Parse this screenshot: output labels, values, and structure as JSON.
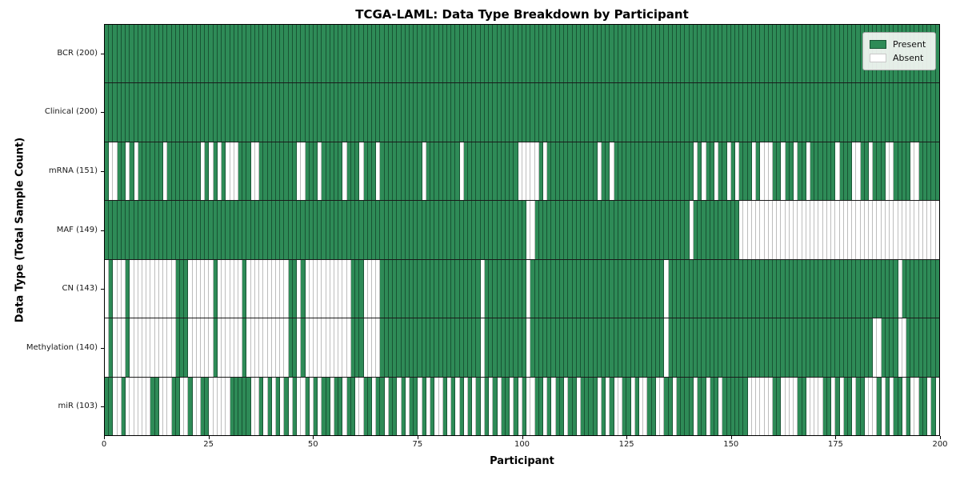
{
  "chart_data": {
    "type": "heatmap",
    "title": "TCGA-LAML: Data Type Breakdown by Participant",
    "xlabel": "Participant",
    "ylabel": "Data Type (Total Sample Count)",
    "n_participants": 200,
    "x_ticks": [
      0,
      25,
      50,
      75,
      100,
      125,
      150,
      175,
      200
    ],
    "colors": {
      "present": "#2e8b57",
      "absent": "#ffffff"
    },
    "legend": [
      {
        "label": "Present",
        "key": "present"
      },
      {
        "label": "Absent",
        "key": "absent"
      }
    ],
    "rows": [
      {
        "label": "BCR (200)",
        "present_count": 200,
        "absent_columns": []
      },
      {
        "label": "Clinical (200)",
        "present_count": 200,
        "absent_columns": []
      },
      {
        "label": "mRNA (151)",
        "present_count": 151,
        "absent_columns": [
          1,
          2,
          5,
          7,
          14,
          23,
          25,
          27,
          29,
          30,
          31,
          35,
          36,
          46,
          47,
          51,
          57,
          61,
          65,
          76,
          85,
          99,
          100,
          101,
          102,
          103,
          105,
          118,
          121,
          141,
          143,
          146,
          149,
          151,
          155,
          157,
          158,
          159,
          162,
          165,
          168,
          175,
          179,
          180,
          183,
          187,
          188,
          193,
          194
        ]
      },
      {
        "label": "MAF (149)",
        "present_count": 149,
        "absent_columns": [
          101,
          102,
          140,
          152,
          153,
          154,
          155,
          156,
          157,
          158,
          159,
          160,
          161,
          162,
          163,
          164,
          165,
          166,
          167,
          168,
          169,
          170,
          171,
          172,
          173,
          174,
          175,
          176,
          177,
          178,
          179,
          180,
          181,
          182,
          183,
          184,
          185,
          186,
          187,
          188,
          189,
          190,
          191,
          192,
          193,
          194,
          195,
          196,
          197,
          198,
          199
        ]
      },
      {
        "label": "CN (143)",
        "present_count": 143,
        "absent_columns": [
          0,
          2,
          3,
          4,
          6,
          7,
          8,
          9,
          10,
          11,
          12,
          13,
          14,
          15,
          16,
          20,
          21,
          22,
          23,
          24,
          25,
          27,
          28,
          29,
          30,
          31,
          32,
          34,
          35,
          36,
          37,
          38,
          39,
          40,
          41,
          42,
          43,
          46,
          48,
          49,
          50,
          51,
          52,
          53,
          54,
          55,
          56,
          57,
          58,
          62,
          63,
          64,
          65,
          90,
          101,
          134,
          190
        ]
      },
      {
        "label": "Methylation (140)",
        "present_count": 140,
        "absent_columns": [
          0,
          2,
          3,
          4,
          6,
          7,
          8,
          9,
          10,
          11,
          12,
          13,
          14,
          15,
          16,
          20,
          21,
          22,
          23,
          24,
          25,
          27,
          28,
          29,
          30,
          31,
          32,
          34,
          35,
          36,
          37,
          38,
          39,
          40,
          41,
          42,
          43,
          46,
          48,
          49,
          50,
          51,
          52,
          53,
          54,
          55,
          56,
          57,
          58,
          62,
          63,
          64,
          65,
          90,
          101,
          134,
          184,
          185,
          190,
          191
        ]
      },
      {
        "label": "miR (103)",
        "present_count": 103,
        "absent_columns": [
          2,
          3,
          5,
          6,
          7,
          8,
          9,
          10,
          13,
          14,
          15,
          18,
          19,
          21,
          22,
          25,
          26,
          27,
          28,
          29,
          35,
          36,
          38,
          40,
          42,
          44,
          46,
          47,
          49,
          51,
          54,
          57,
          60,
          61,
          64,
          67,
          70,
          72,
          75,
          77,
          79,
          80,
          82,
          84,
          86,
          88,
          90,
          92,
          94,
          97,
          99,
          101,
          102,
          105,
          107,
          110,
          113,
          118,
          120,
          122,
          123,
          126,
          128,
          129,
          132,
          133,
          136,
          141,
          144,
          147,
          154,
          155,
          156,
          157,
          158,
          159,
          162,
          163,
          164,
          165,
          168,
          169,
          170,
          171,
          174,
          176,
          179,
          182,
          183,
          184,
          186,
          188,
          191,
          193,
          194,
          197,
          199
        ]
      }
    ]
  }
}
